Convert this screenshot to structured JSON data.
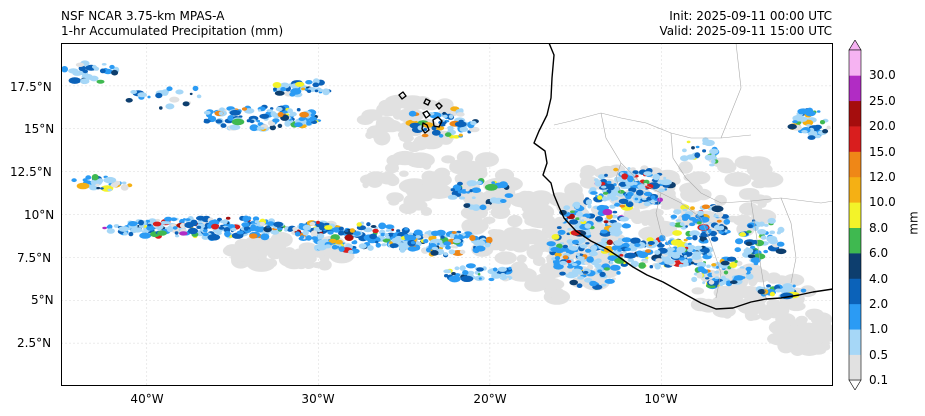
{
  "header": {
    "model": "NSF NCAR 3.75-km MPAS-A",
    "field": "1-hr Accumulated Precipitation (mm)",
    "init": "Init: 2025-09-11 00:00 UTC",
    "valid": "Valid: 2025-09-11 15:00 UTC"
  },
  "map": {
    "lat_labels": [
      "17.5°N",
      "15°N",
      "12.5°N",
      "10°N",
      "7.5°N",
      "5°N",
      "2.5°N"
    ],
    "lon_labels": [
      "40°W",
      "30°W",
      "20°W",
      "10°W"
    ],
    "lat_values": [
      17.5,
      15,
      12.5,
      10,
      7.5,
      5,
      2.5
    ],
    "lon_values": [
      -40,
      -30,
      -20,
      -10
    ],
    "extent": {
      "lon_min": -45,
      "lon_max": 0,
      "lat_min": 0,
      "lat_max": 20
    },
    "background": "#ffffff",
    "coast_color": "#000000",
    "border_color": "#aaaaaa"
  },
  "colorbar": {
    "unit": "mm",
    "ticks": [
      "0.1",
      "0.5",
      "1.0",
      "2.0",
      "4.0",
      "6.0",
      "8.0",
      "10.0",
      "12.0",
      "15.0",
      "20.0",
      "25.0",
      "30.0"
    ],
    "colors": [
      "#e1e1e1",
      "#a6d7f7",
      "#2b9bf4",
      "#0b62b9",
      "#0d3e6e",
      "#3fb950",
      "#f3f329",
      "#f5b014",
      "#ef8717",
      "#d91e1e",
      "#a50d0d",
      "#b12cc4",
      "#f6b3f2"
    ]
  }
}
